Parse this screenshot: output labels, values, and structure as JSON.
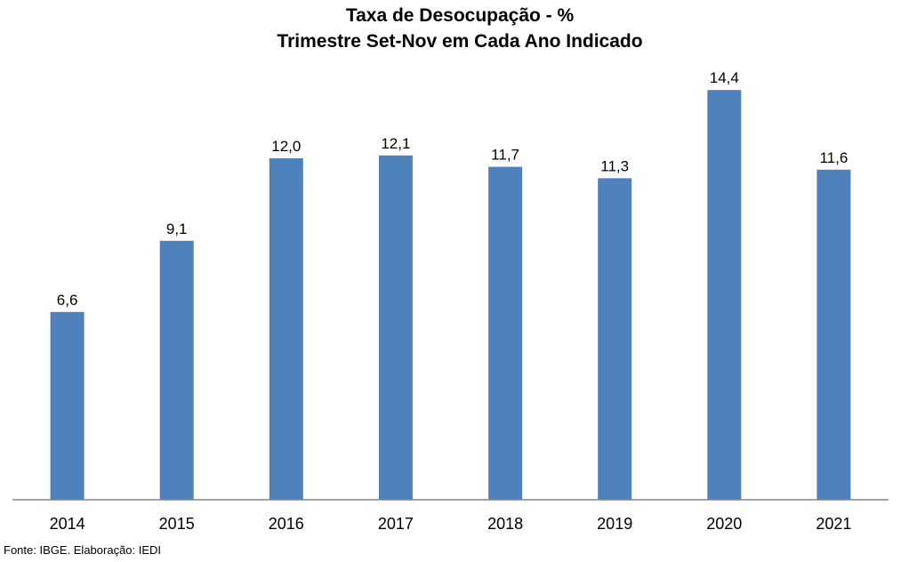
{
  "chart_data": {
    "type": "bar",
    "title": "Taxa de Desocupação - %",
    "subtitle": "Trimestre Set-Nov em Cada Ano Indicado",
    "categories": [
      "2014",
      "2015",
      "2016",
      "2017",
      "2018",
      "2019",
      "2020",
      "2021"
    ],
    "values": [
      6.6,
      9.1,
      12.0,
      12.1,
      11.7,
      11.3,
      14.4,
      11.6
    ],
    "value_labels": [
      "6,6",
      "9,1",
      "12,0",
      "12,1",
      "11,7",
      "11,3",
      "14,4",
      "11,6"
    ],
    "ylim": [
      0,
      15.0
    ],
    "grid": false,
    "legend": "none",
    "bar_color": "#4F81BD",
    "axis_color": "#868686"
  },
  "source": "Fonte: IBGE. Elaboração: IEDI"
}
